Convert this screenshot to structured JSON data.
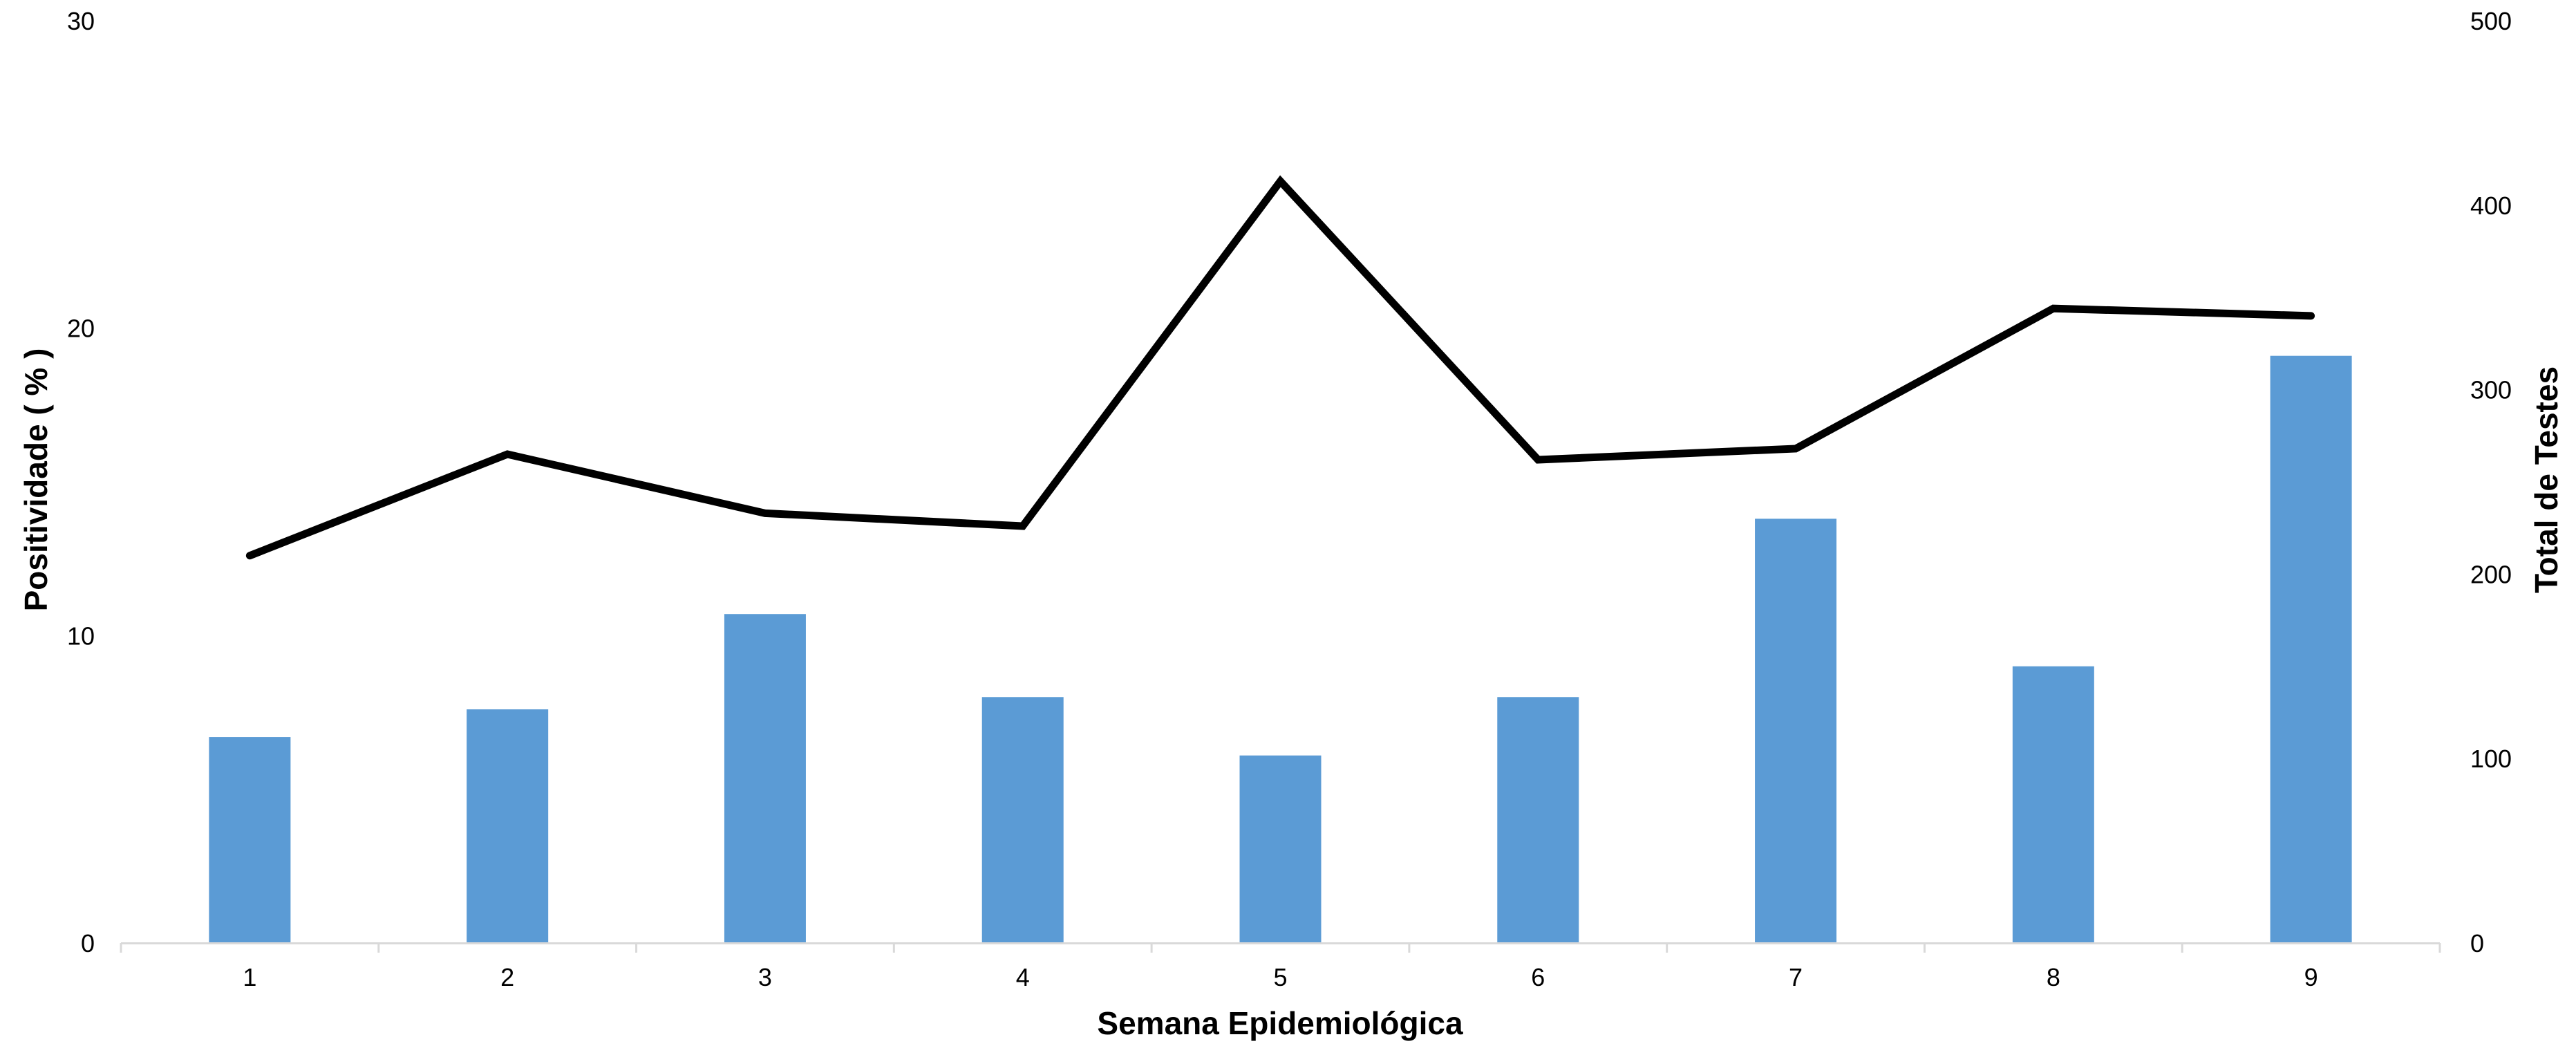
{
  "chart_data": {
    "type": "bar",
    "title": "",
    "xlabel": "Semana Epidemiológica",
    "ylabel_left": "Positividade ( % )",
    "ylabel_right": "Total de Testes",
    "categories": [
      "1",
      "2",
      "3",
      "4",
      "5",
      "6",
      "7",
      "8",
      "9"
    ],
    "left_axis": {
      "min": 0,
      "max": 30,
      "ticks": [
        "0",
        "10",
        "20",
        "30"
      ]
    },
    "right_axis": {
      "min": 0,
      "max": 500,
      "ticks": [
        "0",
        "100",
        "200",
        "300",
        "400",
        "500"
      ]
    },
    "series": [
      {
        "type": "bar",
        "axis": "left",
        "color": "#5b9bd5",
        "values": [
          6.7,
          7.6,
          10.7,
          8.0,
          6.1,
          8.0,
          13.8,
          9.0,
          19.1
        ]
      },
      {
        "type": "line",
        "axis": "right",
        "color": "#000000",
        "values": [
          210,
          265,
          233,
          226,
          413,
          262,
          268,
          344,
          340
        ]
      }
    ],
    "grid": false,
    "legend": "none"
  }
}
